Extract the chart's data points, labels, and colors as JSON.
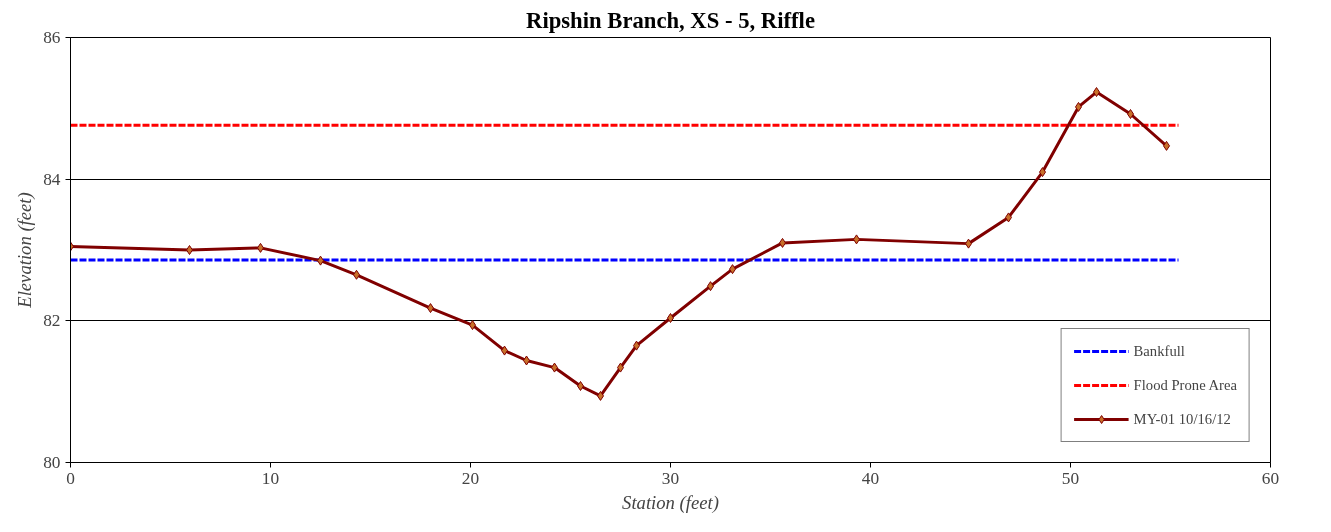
{
  "chart_data": {
    "type": "line",
    "title": "Ripshin Branch, XS - 5, Riffle",
    "xlabel": "Station (feet)",
    "ylabel": "Elevation (feet)",
    "xlim": [
      0,
      60
    ],
    "xticks": [
      0,
      10,
      20,
      30,
      40,
      50,
      60
    ],
    "ylim": [
      80,
      86
    ],
    "yticks": [
      80,
      82,
      84,
      86
    ],
    "grid": "y",
    "legend": "bottom right",
    "series": [
      {
        "name": "Bankfull",
        "color": "#0000ff",
        "line_style": "dashed",
        "marker": "none",
        "x": [
          0,
          55.4
        ],
        "values": [
          82.86,
          82.86
        ]
      },
      {
        "name": "Flood Prone Area",
        "color": "#ff0000",
        "line_style": "dashed",
        "marker": "none",
        "x": [
          0,
          55.4
        ],
        "values": [
          84.76,
          84.76
        ]
      },
      {
        "name": "MY-01 10/16/12",
        "color": "#800000",
        "line_style": "solid",
        "marker": "diamond",
        "x": [
          0,
          5.95,
          9.5,
          12.5,
          14.3,
          18.0,
          20.1,
          21.7,
          22.8,
          24.2,
          25.5,
          26.5,
          27.5,
          28.3,
          30.0,
          32.0,
          33.1,
          35.6,
          39.3,
          44.9,
          46.9,
          48.6,
          50.4,
          51.3,
          53.0,
          54.8
        ],
        "values": [
          83.05,
          83.0,
          83.03,
          82.85,
          82.65,
          82.18,
          81.94,
          81.58,
          81.44,
          81.34,
          81.08,
          80.94,
          81.34,
          81.65,
          82.04,
          82.49,
          82.73,
          83.1,
          83.15,
          83.09,
          83.46,
          84.1,
          85.02,
          85.23,
          84.92,
          84.47
        ]
      }
    ]
  }
}
